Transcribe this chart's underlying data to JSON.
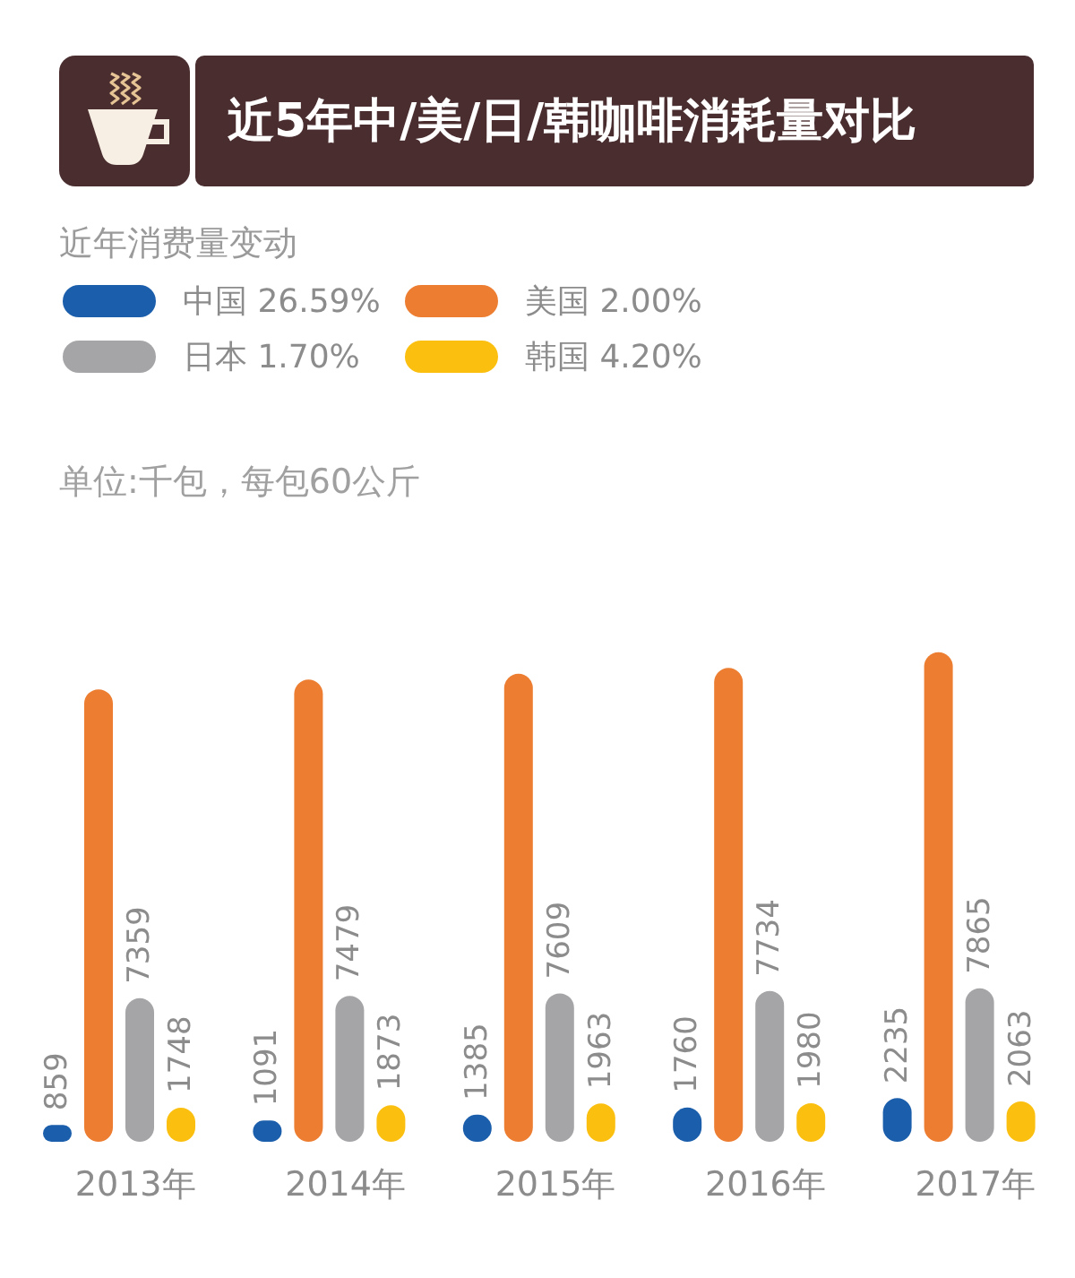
{
  "chart_data": {
    "type": "bar",
    "title": "近5年中/美/日/韩咖啡消耗量对比",
    "legend_title": "近年消费量变动",
    "annotations": [
      "单位:千包，每包60公斤"
    ],
    "categories": [
      "2013年",
      "2014年",
      "2015年",
      "2016年",
      "2017年"
    ],
    "series": [
      {
        "name": "中国 26.59%",
        "color": "#1b5eab",
        "values": [
          859,
          1091,
          1385,
          1760,
          2235
        ],
        "value_labels": [
          "859",
          "1091",
          "1385",
          "1760",
          "2235"
        ]
      },
      {
        "name": "美国 2.00%",
        "color": "#ec7d31",
        "values": [
          23200,
          23700,
          24000,
          24300,
          25100
        ],
        "value_labels": [
          null,
          null,
          null,
          null,
          null
        ]
      },
      {
        "name": "日本 1.70%",
        "color": "#a5a5a7",
        "values": [
          7359,
          7479,
          7609,
          7734,
          7865
        ],
        "value_labels": [
          "7359",
          "7479",
          "7609",
          "7734",
          "7865"
        ]
      },
      {
        "name": "韩国 4.20%",
        "color": "#fbbf10",
        "values": [
          1748,
          1873,
          1963,
          1980,
          2063
        ],
        "value_labels": [
          "1748",
          "1873",
          "1963",
          "1980",
          "2063"
        ]
      }
    ],
    "legend": "top left",
    "tick_labels": "x"
  }
}
